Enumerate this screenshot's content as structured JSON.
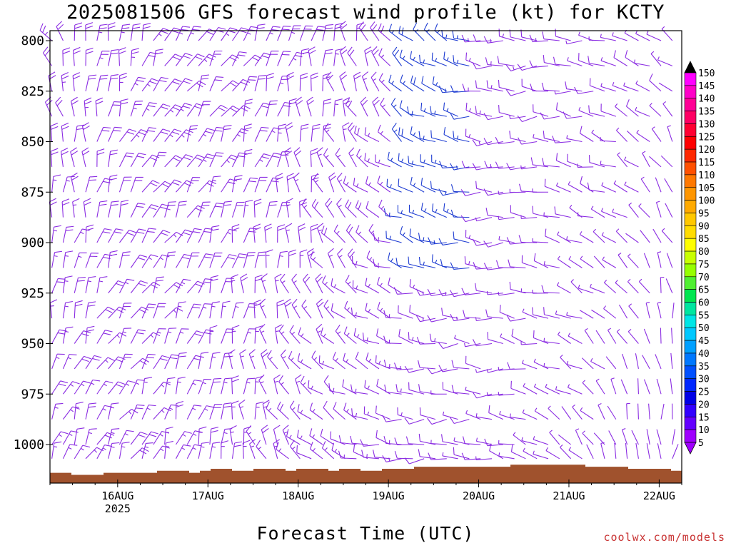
{
  "title": "2025081506 GFS forecast wind profile (kt) for KCTY",
  "x_axis_title": "Forecast Time (UTC)",
  "credit": "coolwx.com/models",
  "colors": {
    "terrain": "#a0522d",
    "wind_barb_main": "#8a2be2",
    "wind_barb_fast": "#1e3cd2"
  },
  "chart_data": {
    "type": "wind-barb time-height",
    "title": "2025081506 GFS forecast wind profile (kt) for KCTY",
    "xlabel": "Forecast Time (UTC)",
    "ylabel": "",
    "y_ticks": [
      "800",
      "825",
      "850",
      "875",
      "900",
      "925",
      "950",
      "975",
      "1000"
    ],
    "y_values": [
      800,
      825,
      850,
      875,
      900,
      925,
      950,
      975,
      1000
    ],
    "ylim": [
      1020,
      800
    ],
    "x_ticks": [
      "16AUG",
      "17AUG",
      "18AUG",
      "19AUG",
      "20AUG",
      "21AUG",
      "22AUG"
    ],
    "x_tick_year": "2025",
    "x_range_hours": [
      6,
      174
    ],
    "colorbar_labels": [
      "150",
      "145",
      "140",
      "135",
      "130",
      "125",
      "120",
      "115",
      "110",
      "105",
      "100",
      "95",
      "90",
      "85",
      "80",
      "75",
      "70",
      "65",
      "60",
      "55",
      "50",
      "45",
      "40",
      "35",
      "30",
      "25",
      "20",
      "15",
      "10",
      "5"
    ],
    "colorbar_colors": [
      "#000000",
      "#ff00ff",
      "#ff00c8",
      "#ff0096",
      "#ff0064",
      "#ff0032",
      "#ff0000",
      "#ff2800",
      "#ff5000",
      "#ff7800",
      "#ff9600",
      "#ffaa00",
      "#ffc800",
      "#ffdc00",
      "#ffff00",
      "#c8ff00",
      "#96ff00",
      "#50f032",
      "#00e650",
      "#00e6a0",
      "#00e6e6",
      "#00c8ff",
      "#00a0ff",
      "#0078ff",
      "#0050ff",
      "#0028ff",
      "#0000e6",
      "#3200ff",
      "#6400ff",
      "#a000ff"
    ],
    "wind_levels_hpa": [
      800,
      812.5,
      825,
      837.5,
      850,
      862.5,
      875,
      887.5,
      900,
      912.5,
      925,
      937.5,
      950,
      962.5,
      975,
      987.5,
      1000,
      1007
    ],
    "time_step_hours": 3,
    "terrain_surface_pressure_hpa": [
      1014,
      1014,
      1015,
      1015,
      1015,
      1014,
      1014,
      1014,
      1014,
      1014,
      1013,
      1013,
      1013,
      1014,
      1013,
      1012,
      1012,
      1013,
      1013,
      1012,
      1012,
      1012,
      1013,
      1012,
      1012,
      1012,
      1013,
      1012,
      1012,
      1013,
      1013,
      1012,
      1012,
      1012,
      1011,
      1011,
      1011,
      1011,
      1011,
      1011,
      1011,
      1011,
      1011,
      1010,
      1010,
      1010,
      1010,
      1010,
      1010,
      1010,
      1011,
      1011,
      1011,
      1011,
      1012,
      1012,
      1012,
      1012,
      1013
    ]
  }
}
